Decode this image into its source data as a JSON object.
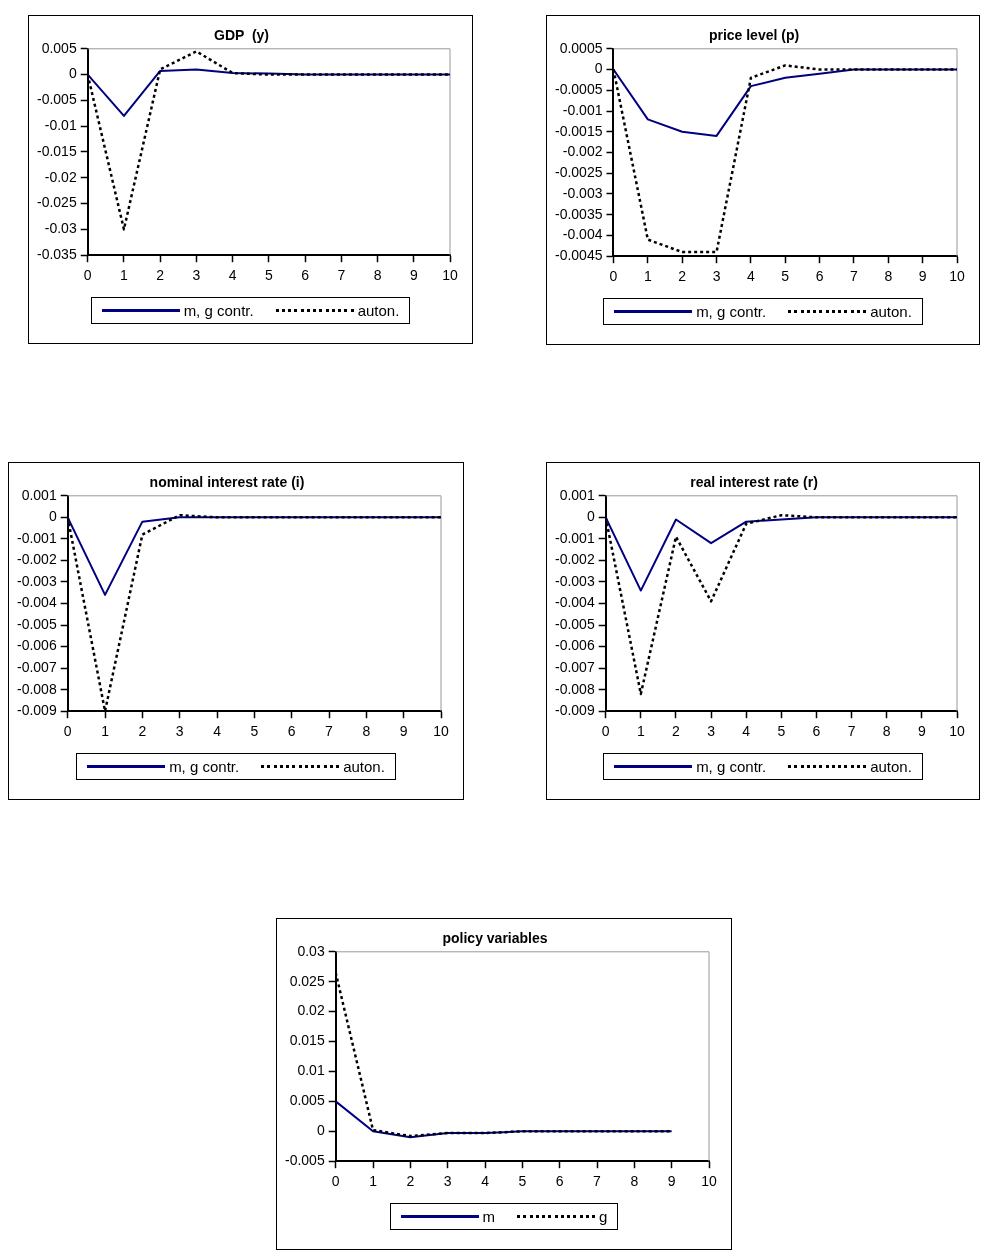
{
  "chart_data": [
    {
      "type": "line",
      "title": "GDP  (y)",
      "x": [
        0,
        1,
        2,
        3,
        4,
        5,
        6,
        7,
        8,
        9,
        10
      ],
      "xlim": [
        0,
        10
      ],
      "xticks": [
        0,
        1,
        2,
        3,
        4,
        5,
        6,
        7,
        8,
        9,
        10
      ],
      "ylim": [
        -0.035,
        0.005
      ],
      "yticks": [
        -0.035,
        -0.03,
        -0.025,
        -0.02,
        -0.015,
        -0.01,
        -0.005,
        0,
        0.005
      ],
      "grid": false,
      "legend": "bottom",
      "marker": "none",
      "series": [
        {
          "name": "m, g contr.",
          "color": "#000080",
          "line_style": "solid",
          "values": [
            0,
            -0.008,
            0.0007,
            0.001,
            0.0003,
            0.0002,
            0,
            0,
            0,
            0,
            0
          ]
        },
        {
          "name": "auton.",
          "color": "#000000",
          "line_style": "dotted",
          "values": [
            0,
            -0.03,
            0.001,
            0.0045,
            0.0003,
            0,
            0,
            0,
            0,
            0,
            0
          ]
        }
      ]
    },
    {
      "type": "line",
      "title": "price level (p)",
      "x": [
        0,
        1,
        2,
        3,
        4,
        5,
        6,
        7,
        8,
        9,
        10
      ],
      "xlim": [
        0,
        10
      ],
      "xticks": [
        0,
        1,
        2,
        3,
        4,
        5,
        6,
        7,
        8,
        9,
        10
      ],
      "ylim": [
        -0.0045,
        0.0005
      ],
      "yticks": [
        -0.0045,
        -0.004,
        -0.0035,
        -0.003,
        -0.0025,
        -0.002,
        -0.0015,
        -0.001,
        -0.0005,
        0,
        0.0005
      ],
      "grid": false,
      "legend": "bottom",
      "marker": "none",
      "series": [
        {
          "name": "m, g contr.",
          "color": "#000080",
          "line_style": "solid",
          "values": [
            0,
            -0.0012,
            -0.0015,
            -0.0016,
            -0.0004,
            -0.0002,
            -0.0001,
            0,
            0,
            0,
            0
          ]
        },
        {
          "name": "auton.",
          "color": "#000000",
          "line_style": "dotted",
          "values": [
            0,
            -0.0041,
            -0.0044,
            -0.0044,
            -0.0002,
            0.0001,
            0,
            0,
            0,
            0,
            0
          ]
        }
      ]
    },
    {
      "type": "line",
      "title": "nominal interest rate (i)",
      "x": [
        0,
        1,
        2,
        3,
        4,
        5,
        6,
        7,
        8,
        9,
        10
      ],
      "xlim": [
        0,
        10
      ],
      "xticks": [
        0,
        1,
        2,
        3,
        4,
        5,
        6,
        7,
        8,
        9,
        10
      ],
      "ylim": [
        -0.009,
        0.001
      ],
      "yticks": [
        -0.009,
        -0.008,
        -0.007,
        -0.006,
        -0.005,
        -0.004,
        -0.003,
        -0.002,
        -0.001,
        0,
        0.001
      ],
      "grid": false,
      "legend": "bottom",
      "marker": "none",
      "series": [
        {
          "name": "m, g contr.",
          "color": "#000080",
          "line_style": "solid",
          "values": [
            0,
            -0.0036,
            -0.0002,
            0,
            0,
            0,
            0,
            0,
            0,
            0,
            0
          ]
        },
        {
          "name": "auton.",
          "color": "#000000",
          "line_style": "dotted",
          "values": [
            0,
            -0.009,
            -0.0008,
            0.0001,
            0,
            0,
            0,
            0,
            0,
            0,
            0
          ]
        }
      ]
    },
    {
      "type": "line",
      "title": "real interest rate (r)",
      "x": [
        0,
        1,
        2,
        3,
        4,
        5,
        6,
        7,
        8,
        9,
        10
      ],
      "xlim": [
        0,
        10
      ],
      "xticks": [
        0,
        1,
        2,
        3,
        4,
        5,
        6,
        7,
        8,
        9,
        10
      ],
      "ylim": [
        -0.009,
        0.001
      ],
      "yticks": [
        -0.009,
        -0.008,
        -0.007,
        -0.006,
        -0.005,
        -0.004,
        -0.003,
        -0.002,
        -0.001,
        0,
        0.001
      ],
      "grid": false,
      "legend": "bottom",
      "marker": "none",
      "series": [
        {
          "name": "m, g contr.",
          "color": "#000080",
          "line_style": "solid",
          "values": [
            0,
            -0.0034,
            -0.0001,
            -0.0012,
            -0.0002,
            -0.0001,
            0,
            0,
            0,
            0,
            0
          ]
        },
        {
          "name": "auton.",
          "color": "#000000",
          "line_style": "dotted",
          "values": [
            0,
            -0.0082,
            -0.0009,
            -0.0039,
            -0.0003,
            0.0001,
            0,
            0,
            0,
            0,
            0
          ]
        }
      ]
    },
    {
      "type": "line",
      "title": "policy variables",
      "x": [
        0,
        1,
        2,
        3,
        4,
        5,
        6,
        7,
        8,
        9
      ],
      "xlim": [
        0,
        10
      ],
      "xticks": [
        0,
        1,
        2,
        3,
        4,
        5,
        6,
        7,
        8,
        9,
        10
      ],
      "ylim": [
        -0.005,
        0.03
      ],
      "yticks": [
        -0.005,
        0,
        0.005,
        0.01,
        0.015,
        0.02,
        0.025,
        0.03
      ],
      "grid": false,
      "legend": "bottom",
      "marker": "none",
      "series": [
        {
          "name": "m",
          "color": "#000080",
          "line_style": "solid",
          "values": [
            0.005,
            0,
            -0.001,
            -0.0003,
            -0.0003,
            0,
            0,
            0,
            0,
            0
          ]
        },
        {
          "name": "g",
          "color": "#000000",
          "line_style": "dotted",
          "values": [
            0.0265,
            0.0002,
            -0.0008,
            -0.0003,
            -0.0003,
            0,
            0,
            0,
            0,
            0
          ]
        }
      ]
    }
  ]
}
